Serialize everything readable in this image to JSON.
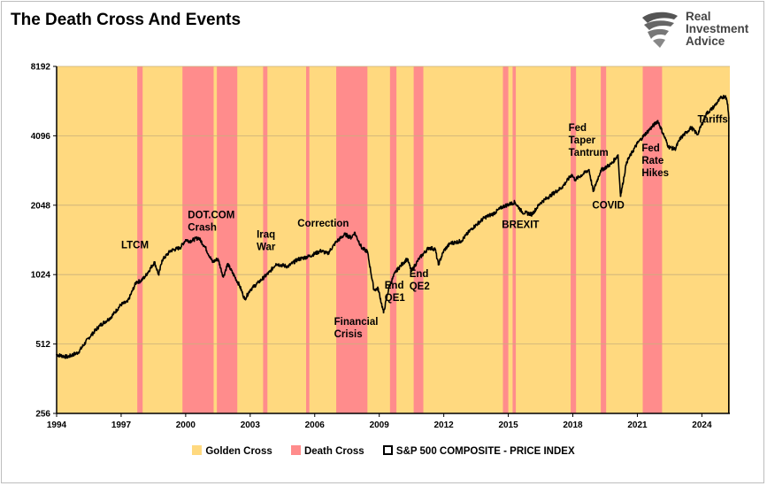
{
  "title": "The Death Cross And Events",
  "logo": {
    "line1": "Real",
    "line2": "Investment",
    "line3": "Advice",
    "icon": "eagle-head-icon"
  },
  "colors": {
    "golden": "#FFD97F",
    "death": "#FF8C8C",
    "line": "#000000",
    "grid": "#c8b07a"
  },
  "legend": {
    "golden": "Golden Cross",
    "death": "Death Cross",
    "sp": "S&P 500 COMPOSITE - PRICE INDEX"
  },
  "chart_data": {
    "type": "line",
    "title": "The Death Cross And Events",
    "xlabel": "",
    "ylabel": "",
    "y_scale": "log2",
    "ylim": [
      256,
      8192
    ],
    "xlim": [
      1994.0,
      2025.3
    ],
    "grid": true,
    "y_ticks": [
      256,
      512,
      1024,
      2048,
      4096,
      8192
    ],
    "x_ticks": [
      1994,
      1997,
      2000,
      2003,
      2006,
      2009,
      2012,
      2015,
      2018,
      2021,
      2024
    ],
    "death_cross_periods": [
      [
        1997.75,
        1998.0
      ],
      [
        1999.85,
        2001.3
      ],
      [
        2001.45,
        2002.4
      ],
      [
        2003.6,
        2003.8
      ],
      [
        2005.6,
        2005.75
      ],
      [
        2007.0,
        2008.45
      ],
      [
        2009.5,
        2009.8
      ],
      [
        2010.6,
        2011.05
      ],
      [
        2014.75,
        2015.0
      ],
      [
        2015.2,
        2015.35
      ],
      [
        2017.9,
        2018.15
      ],
      [
        2019.3,
        2019.55
      ],
      [
        2021.25,
        2022.15
      ]
    ],
    "series": [
      {
        "name": "S&P 500 COMPOSITE - PRICE INDEX",
        "points": [
          [
            1994.0,
            460
          ],
          [
            1994.5,
            450
          ],
          [
            1995.0,
            470
          ],
          [
            1995.5,
            545
          ],
          [
            1996.0,
            615
          ],
          [
            1996.5,
            665
          ],
          [
            1997.0,
            760
          ],
          [
            1997.3,
            780
          ],
          [
            1997.7,
            950
          ],
          [
            1997.9,
            960
          ],
          [
            1998.1,
            1000
          ],
          [
            1998.55,
            1160
          ],
          [
            1998.75,
            1020
          ],
          [
            1998.9,
            1180
          ],
          [
            1999.3,
            1300
          ],
          [
            1999.75,
            1340
          ],
          [
            2000.0,
            1450
          ],
          [
            2000.2,
            1430
          ],
          [
            2000.6,
            1480
          ],
          [
            2000.9,
            1350
          ],
          [
            2001.25,
            1160
          ],
          [
            2001.5,
            1200
          ],
          [
            2001.75,
            1000
          ],
          [
            2001.95,
            1140
          ],
          [
            2002.5,
            920
          ],
          [
            2002.75,
            800
          ],
          [
            2003.0,
            880
          ],
          [
            2003.4,
            950
          ],
          [
            2003.9,
            1050
          ],
          [
            2004.2,
            1140
          ],
          [
            2004.75,
            1110
          ],
          [
            2005.2,
            1190
          ],
          [
            2005.75,
            1230
          ],
          [
            2006.3,
            1300
          ],
          [
            2006.6,
            1260
          ],
          [
            2007.0,
            1420
          ],
          [
            2007.4,
            1530
          ],
          [
            2007.7,
            1480
          ],
          [
            2007.85,
            1560
          ],
          [
            2008.2,
            1330
          ],
          [
            2008.45,
            1290
          ],
          [
            2008.75,
            880
          ],
          [
            2008.95,
            890
          ],
          [
            2009.2,
            700
          ],
          [
            2009.45,
            900
          ],
          [
            2009.75,
            1050
          ],
          [
            2010.0,
            1120
          ],
          [
            2010.3,
            1200
          ],
          [
            2010.5,
            1060
          ],
          [
            2010.85,
            1200
          ],
          [
            2011.3,
            1340
          ],
          [
            2011.6,
            1320
          ],
          [
            2011.75,
            1130
          ],
          [
            2012.0,
            1300
          ],
          [
            2012.3,
            1400
          ],
          [
            2012.8,
            1430
          ],
          [
            2013.3,
            1620
          ],
          [
            2013.9,
            1810
          ],
          [
            2014.3,
            1880
          ],
          [
            2014.75,
            2020
          ],
          [
            2015.3,
            2110
          ],
          [
            2015.65,
            1910
          ],
          [
            2016.1,
            1870
          ],
          [
            2016.5,
            2100
          ],
          [
            2017.0,
            2270
          ],
          [
            2017.5,
            2450
          ],
          [
            2017.95,
            2780
          ],
          [
            2018.1,
            2640
          ],
          [
            2018.75,
            2920
          ],
          [
            2018.95,
            2350
          ],
          [
            2019.3,
            2900
          ],
          [
            2019.8,
            3100
          ],
          [
            2020.1,
            3380
          ],
          [
            2020.22,
            2240
          ],
          [
            2020.5,
            3150
          ],
          [
            2021.0,
            3800
          ],
          [
            2021.4,
            4200
          ],
          [
            2021.95,
            4760
          ],
          [
            2022.45,
            3670
          ],
          [
            2022.75,
            3580
          ],
          [
            2023.0,
            3990
          ],
          [
            2023.5,
            4450
          ],
          [
            2023.8,
            4150
          ],
          [
            2024.2,
            5100
          ],
          [
            2024.5,
            5400
          ],
          [
            2024.9,
            6000
          ],
          [
            2025.1,
            6100
          ],
          [
            2025.2,
            5600
          ],
          [
            2025.25,
            4900
          ]
        ]
      }
    ],
    "annotations": [
      {
        "lines": [
          "LTCM"
        ],
        "x": 1997.0,
        "y": 1330
      },
      {
        "lines": [
          "DOT.COM",
          "Crash"
        ],
        "x": 2000.1,
        "y": 1800
      },
      {
        "lines": [
          "Iraq",
          "War"
        ],
        "x": 2003.3,
        "y": 1480
      },
      {
        "lines": [
          "Correction"
        ],
        "x": 2005.2,
        "y": 1650
      },
      {
        "lines": [
          "Financial",
          "Crisis"
        ],
        "x": 2006.9,
        "y": 620
      },
      {
        "lines": [
          "End",
          "QE1"
        ],
        "x": 2009.25,
        "y": 890
      },
      {
        "lines": [
          "End",
          "QE2"
        ],
        "x": 2010.4,
        "y": 1000
      },
      {
        "lines": [
          "BREXIT"
        ],
        "x": 2014.7,
        "y": 1630
      },
      {
        "lines": [
          "Fed",
          "Taper",
          "Tantrum"
        ],
        "x": 2017.8,
        "y": 4300
      },
      {
        "lines": [
          "COVID"
        ],
        "x": 2018.9,
        "y": 1980
      },
      {
        "lines": [
          "Fed",
          "Rate",
          "Hikes"
        ],
        "x": 2021.2,
        "y": 3500
      },
      {
        "lines": [
          "Tariffs"
        ],
        "x": 2023.8,
        "y": 4670
      }
    ]
  }
}
